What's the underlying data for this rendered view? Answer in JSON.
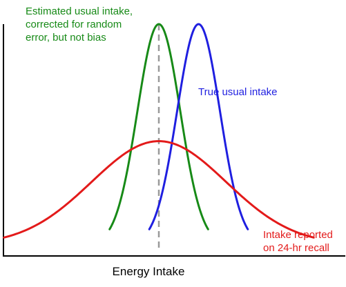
{
  "chart_data": {
    "type": "line",
    "title": "",
    "xlabel": "Energy Intake",
    "ylabel": "",
    "grid": false,
    "x_range": [
      0,
      10
    ],
    "y_range": [
      0,
      1
    ],
    "series": [
      {
        "name": "Estimated usual intake, corrected for random error, but not bias",
        "color": "#178a17",
        "mean": 4.6,
        "sd": 0.62,
        "peak": 1.0
      },
      {
        "name": "True usual intake",
        "color": "#1f1fe0",
        "mean": 5.75,
        "sd": 0.62,
        "peak": 1.0
      },
      {
        "name": "Intake reported on 24-hr recall",
        "color": "#e31a1a",
        "mean": 4.6,
        "sd": 1.95,
        "peak": 0.47
      }
    ],
    "reference_line": {
      "x": 4.6,
      "color": "#999999",
      "style": "dashed"
    }
  },
  "labels": {
    "green": "Estimated usual intake,\ncorrected for random\nerror, but not bias",
    "blue": "True usual intake",
    "red": "Intake reported\non 24-hr recall"
  }
}
